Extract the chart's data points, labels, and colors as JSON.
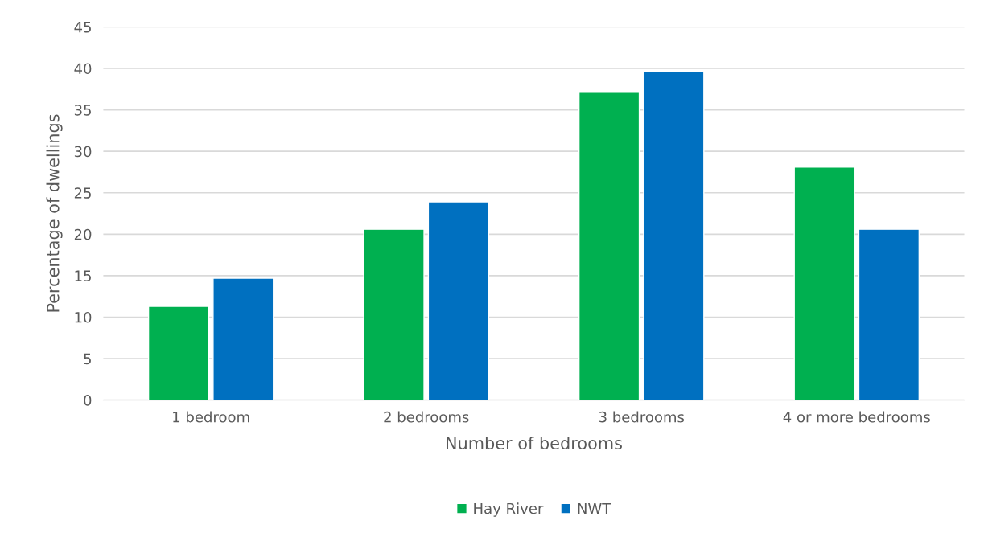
{
  "chart_data": {
    "type": "bar",
    "xlabel": "Number of bedrooms",
    "ylabel": "Percentage of dwellings",
    "categories": [
      "1 bedroom",
      "2 bedrooms",
      "3 bedrooms",
      "4 or more bedrooms"
    ],
    "series": [
      {
        "name": "Hay River",
        "color": "#00b050",
        "values": [
          11.3,
          20.6,
          37.1,
          28.1
        ]
      },
      {
        "name": "NWT",
        "color": "#0070c0",
        "values": [
          14.7,
          23.9,
          39.6,
          20.6
        ]
      }
    ],
    "ylim": [
      0,
      45
    ],
    "yticks": [
      0,
      5,
      10,
      15,
      20,
      25,
      30,
      35,
      40,
      45
    ],
    "grid": "y",
    "legend": "bottom"
  }
}
